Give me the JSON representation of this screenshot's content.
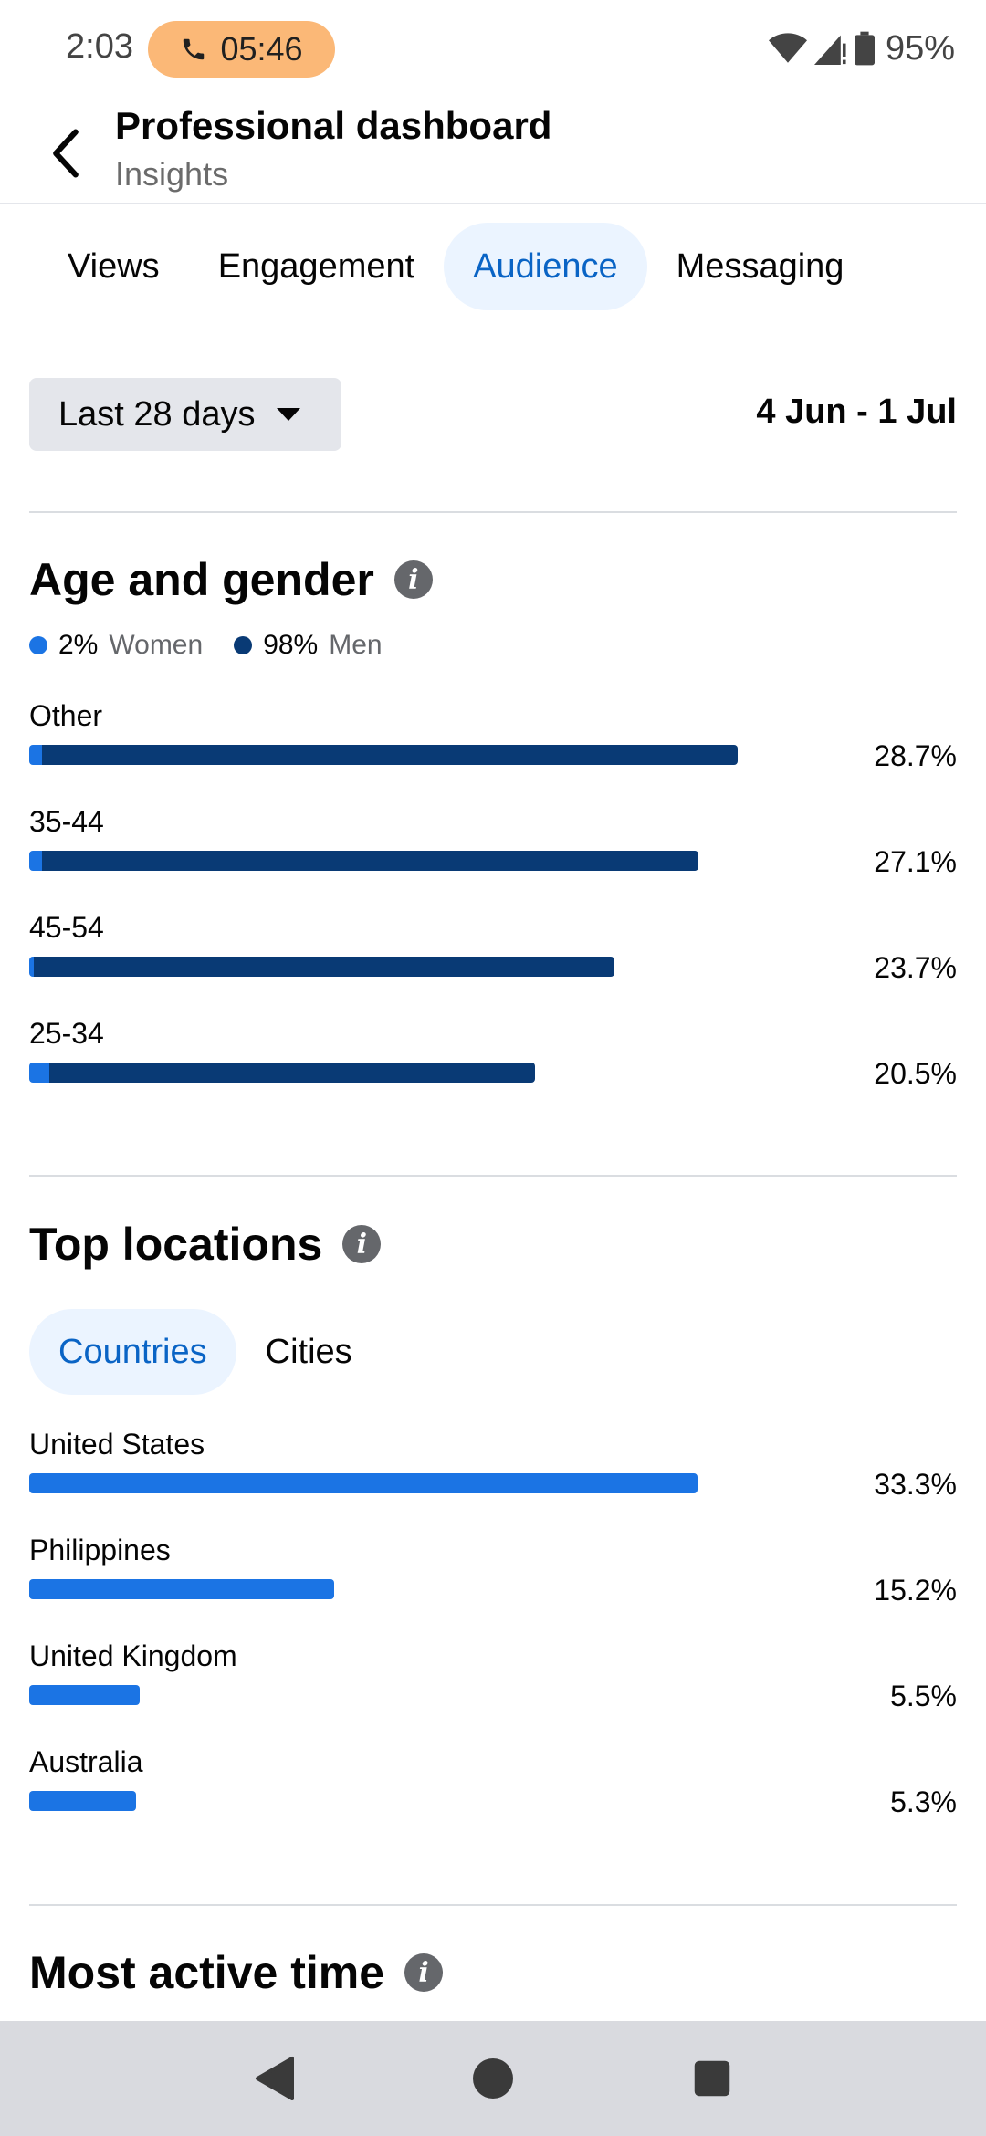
{
  "status_bar": {
    "time": "2:03",
    "call_timer": "05:46",
    "battery": "95%"
  },
  "header": {
    "title": "Professional dashboard",
    "subtitle": "Insights"
  },
  "tabs": [
    {
      "label": "Views",
      "active": false
    },
    {
      "label": "Engagement",
      "active": false
    },
    {
      "label": "Audience",
      "active": true
    },
    {
      "label": "Messaging",
      "active": false
    }
  ],
  "filter": {
    "range_label": "Last 28 days",
    "date_range": "4 Jun - 1 Jul"
  },
  "age_gender": {
    "title": "Age and gender",
    "legend": [
      {
        "pct": "2%",
        "label": "Women",
        "color": "#1b74e4"
      },
      {
        "pct": "98%",
        "label": "Men",
        "color": "#093a75"
      }
    ],
    "colors": {
      "women": "#1b74e4",
      "men": "#093a75"
    }
  },
  "top_locations": {
    "title": "Top locations",
    "tabs": [
      {
        "label": "Countries",
        "active": true
      },
      {
        "label": "Cities",
        "active": false
      }
    ],
    "bar_color": "#1b74e4"
  },
  "most_active": {
    "title": "Most active time"
  },
  "chart_data": [
    {
      "type": "bar",
      "orientation": "horizontal",
      "stacked": true,
      "categories": [
        "Other",
        "35-44",
        "45-54",
        "25-34"
      ],
      "value_labels": [
        "28.7%",
        "27.1%",
        "23.7%",
        "20.5%"
      ],
      "series": [
        {
          "name": "Women",
          "values": [
            0.5,
            0.5,
            0.2,
            0.8
          ]
        },
        {
          "name": "Men",
          "values": [
            28.2,
            26.6,
            23.5,
            19.7
          ]
        }
      ]
    },
    {
      "type": "bar",
      "orientation": "horizontal",
      "categories": [
        "United States",
        "Philippines",
        "United Kingdom",
        "Australia"
      ],
      "value_labels": [
        "33.3%",
        "15.2%",
        "5.5%",
        "5.3%"
      ],
      "values": [
        33.3,
        15.2,
        5.5,
        5.3
      ]
    }
  ]
}
